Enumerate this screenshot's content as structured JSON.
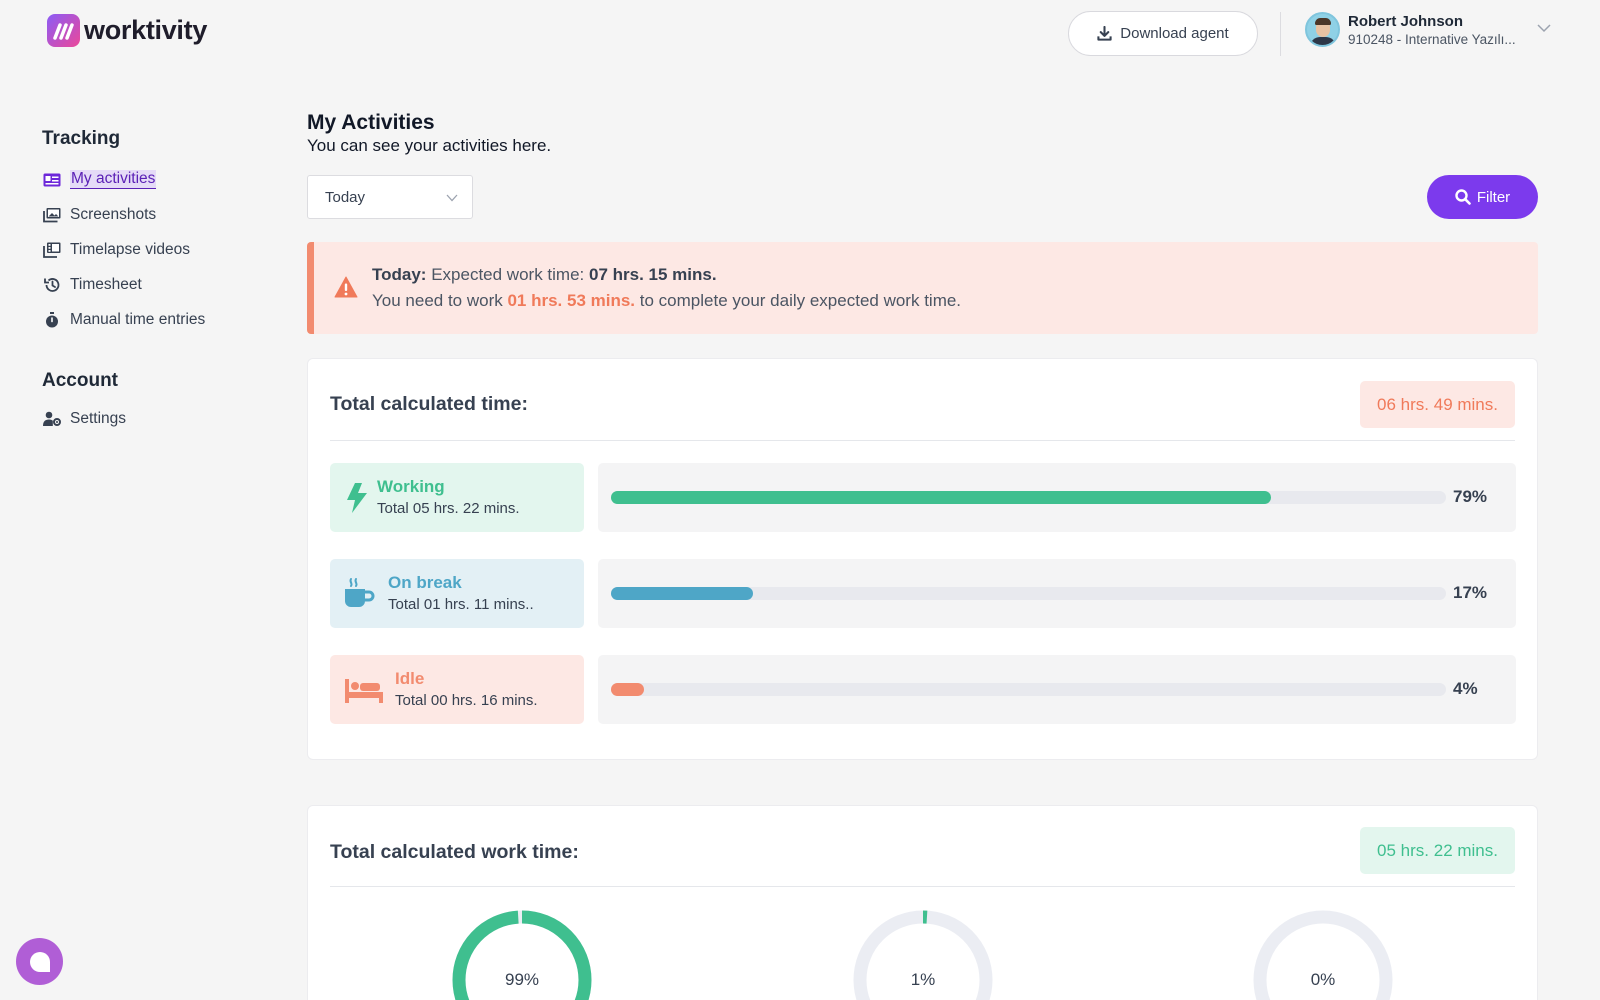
{
  "app": {
    "logo_text": "worktivity"
  },
  "header": {
    "download_label": "Download agent",
    "user_name": "Robert Johnson",
    "user_org": "910248 - Internative Yazılı..."
  },
  "sidebar": {
    "tracking_title": "Tracking",
    "tracking_items": [
      {
        "label": "My activities",
        "icon": "id-card-icon",
        "active": true
      },
      {
        "label": "Screenshots",
        "icon": "images-icon"
      },
      {
        "label": "Timelapse videos",
        "icon": "photo-film-icon"
      },
      {
        "label": "Timesheet",
        "icon": "history-icon"
      },
      {
        "label": "Manual time entries",
        "icon": "stopwatch-icon"
      }
    ],
    "account_title": "Account",
    "account_items": [
      {
        "label": "Settings",
        "icon": "user-gear-icon"
      }
    ]
  },
  "main": {
    "title": "My Activities",
    "subtitle": "You can see your activities here.",
    "period_select": "Today",
    "filter_label": "Filter",
    "alert": {
      "line1_prefix": "Today:",
      "line1_text": " Expected work time: ",
      "line1_value": "07 hrs. 15 mins.",
      "line2_prefix": "You need to work ",
      "line2_value": "01 hrs. 53 mins.",
      "line2_suffix": " to complete your daily expected work time."
    },
    "time_card": {
      "title": "Total calculated time:",
      "total": "06 hrs. 49 mins.",
      "rows": [
        {
          "name": "Working",
          "total": "Total 05 hrs. 22 mins.",
          "percent": 79,
          "percent_label": "79%",
          "color": "#3fbf8f",
          "bg": "#e3f6ee",
          "icon": "bolt-icon"
        },
        {
          "name": "On break",
          "total": "Total 01 hrs. 11 mins..",
          "percent": 17,
          "percent_label": "17%",
          "color": "#4ea6c7",
          "bg": "#e3f0f5",
          "icon": "coffee-cup-icon"
        },
        {
          "name": "Idle",
          "total": "Total 00 hrs. 16 mins.",
          "percent": 4,
          "percent_label": "4%",
          "color": "#f28b6f",
          "bg": "#fde8e4",
          "icon": "bed-icon"
        }
      ]
    },
    "work_card": {
      "title": "Total calculated work time:",
      "total": "05 hrs. 22 mins.",
      "donuts": [
        {
          "label": "99%",
          "value": 99,
          "color": "#3fbf8f"
        },
        {
          "label": "1%",
          "value": 1,
          "color": "#3fbf8f"
        },
        {
          "label": "0%",
          "value": 0,
          "color": "#3fbf8f"
        }
      ]
    }
  },
  "colors": {
    "accent": "#7c3aed",
    "working": "#3fbf8f",
    "break": "#4ea6c7",
    "idle": "#f28b6f",
    "alert_bg": "#fde8e4"
  }
}
